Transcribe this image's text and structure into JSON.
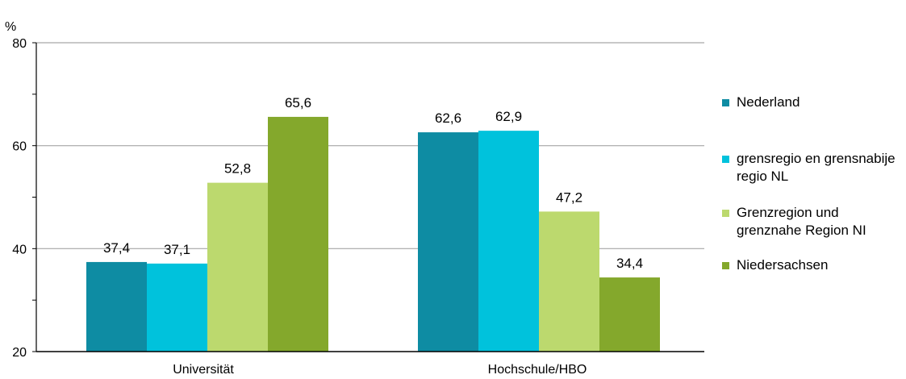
{
  "chart_data": {
    "type": "bar",
    "ylabel": "%",
    "ylim": [
      20,
      80
    ],
    "yticks": [
      20,
      40,
      60,
      80
    ],
    "grid": true,
    "legend_position": "right",
    "categories": [
      "Universität",
      "Hochschule/HBO"
    ],
    "series": [
      {
        "name": "Nederland",
        "color": "#0e8ca3",
        "values": [
          37.4,
          62.6
        ],
        "labels": [
          "37,4",
          "62,6"
        ]
      },
      {
        "name": "grensregio en grensnabije regio NL",
        "color": "#00c2dc",
        "values": [
          37.1,
          62.9
        ],
        "labels": [
          "37,1",
          "62,9"
        ]
      },
      {
        "name": "Grenzregion und grenznahe Region NI",
        "color": "#bcd96e",
        "values": [
          52.8,
          47.2
        ],
        "labels": [
          "52,8",
          "47,2"
        ]
      },
      {
        "name": "Niedersachsen",
        "color": "#84a82c",
        "values": [
          65.6,
          34.4
        ],
        "labels": [
          "65,6",
          "34,4"
        ]
      }
    ]
  }
}
